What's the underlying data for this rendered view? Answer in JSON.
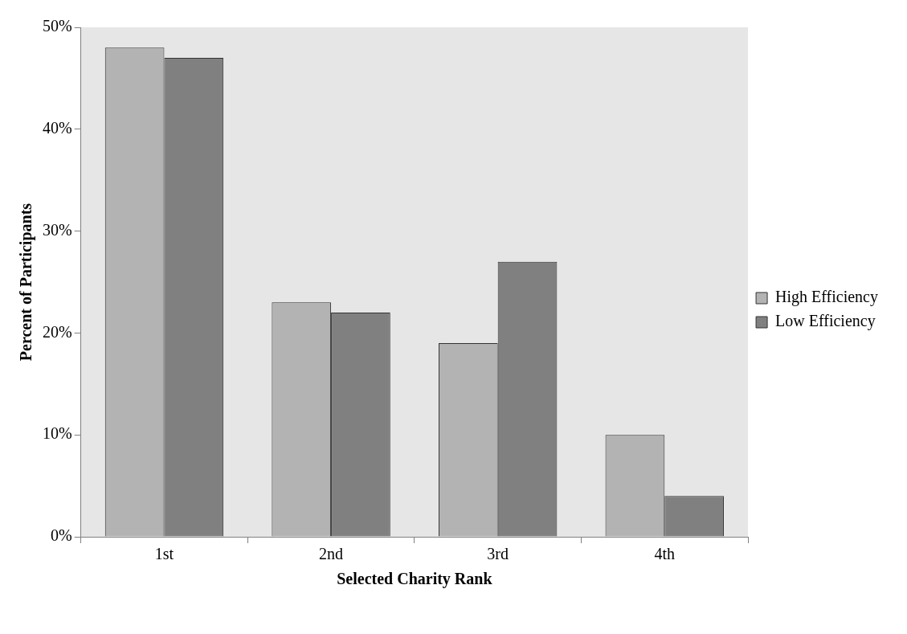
{
  "chart_data": {
    "type": "bar",
    "xlabel": "Selected Charity Rank",
    "ylabel": "Percent of Participants",
    "categories": [
      "1st",
      "2nd",
      "3rd",
      "4th"
    ],
    "series": [
      {
        "name": "High Efficiency",
        "color": "#b3b3b3",
        "values": [
          48,
          23,
          19,
          10
        ]
      },
      {
        "name": "Low Efficiency",
        "color": "#808080",
        "values": [
          47,
          22,
          27,
          4
        ]
      }
    ],
    "ylim": [
      0,
      50
    ],
    "yticks": [
      {
        "value": 0,
        "label": "0%"
      },
      {
        "value": 10,
        "label": "10%"
      },
      {
        "value": 20,
        "label": "20%"
      },
      {
        "value": 30,
        "label": "30%"
      },
      {
        "value": 40,
        "label": "40%"
      },
      {
        "value": 50,
        "label": "50%"
      }
    ],
    "grid": false,
    "legend": "right"
  }
}
